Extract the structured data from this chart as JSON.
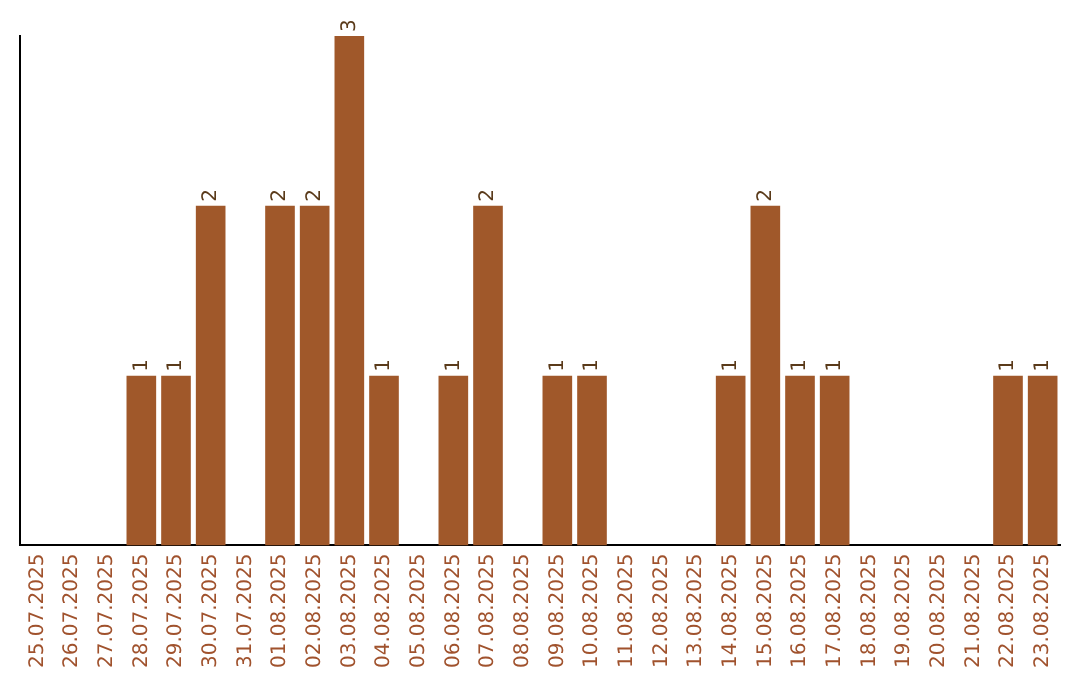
{
  "chart_data": {
    "type": "bar",
    "categories": [
      "25.07.2025",
      "26.07.2025",
      "27.07.2025",
      "28.07.2025",
      "29.07.2025",
      "30.07.2025",
      "31.07.2025",
      "01.08.2025",
      "02.08.2025",
      "03.08.2025",
      "04.08.2025",
      "05.08.2025",
      "06.08.2025",
      "07.08.2025",
      "08.08.2025",
      "09.08.2025",
      "10.08.2025",
      "11.08.2025",
      "12.08.2025",
      "13.08.2025",
      "14.08.2025",
      "15.08.2025",
      "16.08.2025",
      "17.08.2025",
      "18.08.2025",
      "19.08.2025",
      "20.08.2025",
      "21.08.2025",
      "22.08.2025",
      "23.08.2025"
    ],
    "values": [
      0,
      0,
      0,
      1,
      1,
      2,
      0,
      2,
      2,
      3,
      1,
      0,
      1,
      2,
      0,
      1,
      1,
      0,
      0,
      0,
      1,
      2,
      1,
      1,
      0,
      0,
      0,
      0,
      1,
      1
    ],
    "value_labels": [
      null,
      null,
      null,
      "1",
      "1",
      "2",
      null,
      "2",
      "2",
      "3",
      "1",
      null,
      "1",
      "2",
      null,
      "1",
      "1",
      null,
      null,
      null,
      "1",
      "2",
      "1",
      "1",
      null,
      null,
      null,
      null,
      "1",
      "1"
    ],
    "color": "#a0582a",
    "ylim": [
      0,
      3
    ],
    "tick_labels": "x",
    "grid": false,
    "legend": false
  }
}
